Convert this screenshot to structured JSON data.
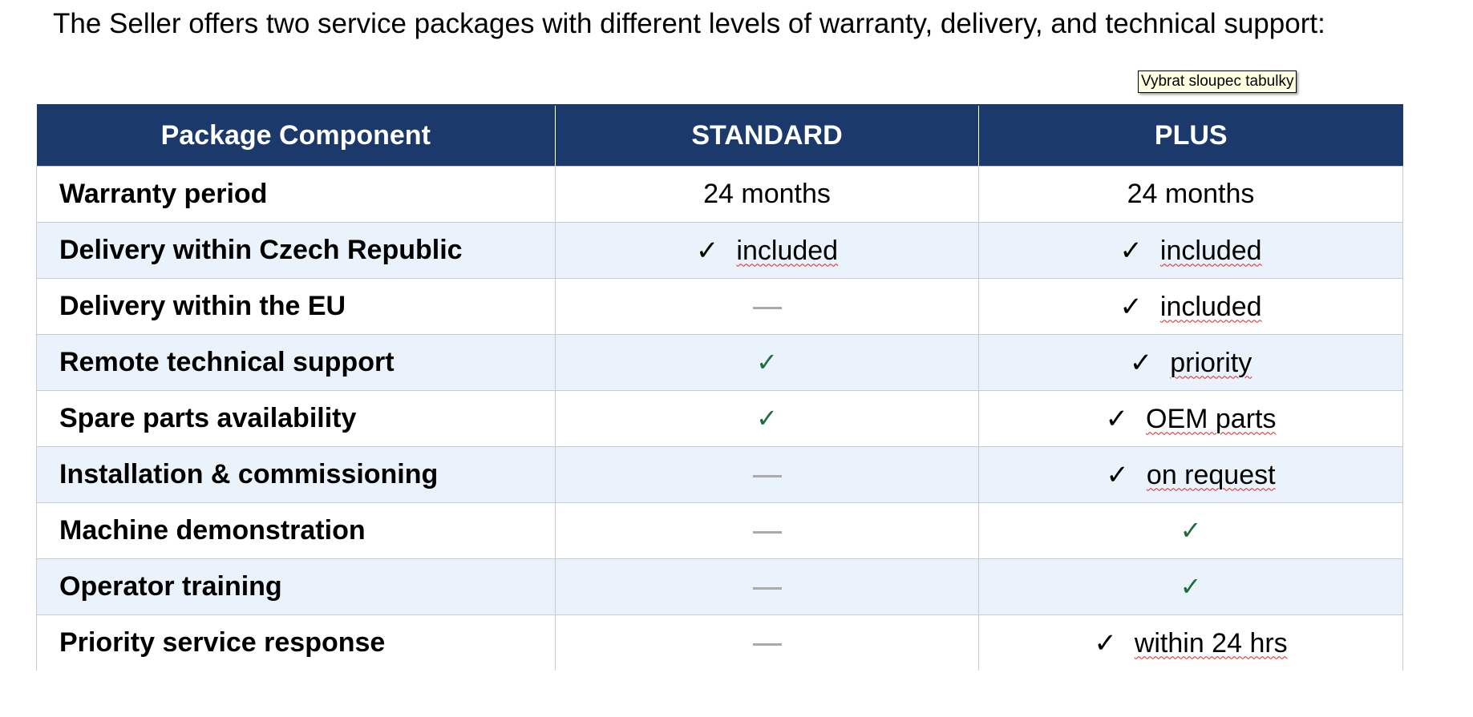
{
  "intro": "The Seller offers two service packages with different levels of warranty, delivery, and technical support:",
  "table": {
    "headers": [
      "Package Component",
      "STANDARD",
      "PLUS"
    ],
    "rows": [
      {
        "label": "Warranty period",
        "standard": {
          "type": "text",
          "text": "24 months"
        },
        "plus": {
          "type": "text",
          "text": "24 months"
        }
      },
      {
        "label": "Delivery within Czech Republic",
        "standard": {
          "type": "check-text",
          "text": "included"
        },
        "plus": {
          "type": "check-text",
          "text": "included"
        }
      },
      {
        "label": "Delivery within the EU",
        "standard": {
          "type": "dash"
        },
        "plus": {
          "type": "check-text",
          "text": "included"
        }
      },
      {
        "label": "Remote technical support",
        "standard": {
          "type": "check"
        },
        "plus": {
          "type": "check-text",
          "text": "priority"
        }
      },
      {
        "label": "Spare parts availability",
        "standard": {
          "type": "check"
        },
        "plus": {
          "type": "check-text",
          "text": "OEM parts"
        }
      },
      {
        "label": "Installation & commissioning",
        "standard": {
          "type": "dash"
        },
        "plus": {
          "type": "check-text",
          "text": "on request"
        }
      },
      {
        "label": "Machine demonstration",
        "standard": {
          "type": "dash"
        },
        "plus": {
          "type": "check"
        }
      },
      {
        "label": "Operator training",
        "standard": {
          "type": "dash"
        },
        "plus": {
          "type": "check"
        }
      },
      {
        "label": "Priority service response",
        "standard": {
          "type": "dash"
        },
        "plus": {
          "type": "check-text",
          "text": "within 24 hrs"
        }
      }
    ]
  },
  "tooltip": "Vybrat sloupec tabulky",
  "colors": {
    "header_bg": "#1b3a6b",
    "stripe": "#eaf3fb",
    "check_green": "#1e6b3c",
    "dash": "#aaaaaa"
  }
}
